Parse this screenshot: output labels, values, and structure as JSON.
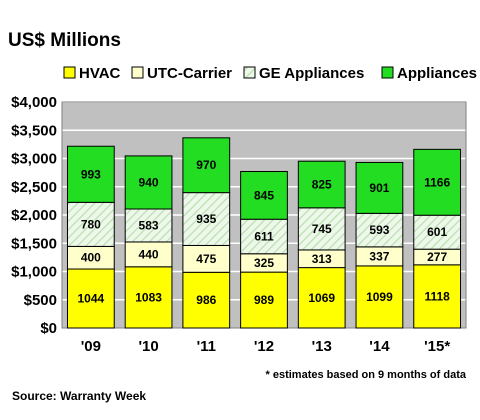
{
  "chart_data": {
    "type": "bar",
    "stacked": true,
    "title": "US$ Millions",
    "categories": [
      "'09",
      "'10",
      "'11",
      "'12",
      "'13",
      "'14",
      "'15*"
    ],
    "series": [
      {
        "name": "HVAC",
        "values": [
          1044,
          1083,
          986,
          989,
          1069,
          1099,
          1118
        ],
        "color": "#ffff00",
        "pattern": "solid"
      },
      {
        "name": "UTC-Carrier",
        "values": [
          400,
          440,
          475,
          325,
          313,
          337,
          277
        ],
        "color": "#ffffcc",
        "pattern": "solid"
      },
      {
        "name": "GE Appliances",
        "values": [
          780,
          583,
          935,
          611,
          745,
          593,
          601
        ],
        "color": "#eef8ea",
        "pattern": "hatched",
        "hatch_color": "#b8e0b0"
      },
      {
        "name": "Appliances",
        "values": [
          993,
          940,
          970,
          845,
          825,
          901,
          1166
        ],
        "color": "#22dd22",
        "pattern": "solid"
      }
    ],
    "ylim": [
      0,
      4000
    ],
    "y_ticks": [
      "$0",
      "$500",
      "$1,000",
      "$1,500",
      "$2,000",
      "$2,500",
      "$3,000",
      "$3,500",
      "$4,000"
    ],
    "y_tick_values": [
      0,
      500,
      1000,
      1500,
      2000,
      2500,
      3000,
      3500,
      4000
    ],
    "xlabel": "",
    "ylabel": "",
    "legend_position": "top",
    "grid": true,
    "plot_background": "#c0c0c0",
    "gridline_color": "#ffffff",
    "footnote": "* estimates based on 9 months of data",
    "source": "Source: Warranty Week"
  }
}
